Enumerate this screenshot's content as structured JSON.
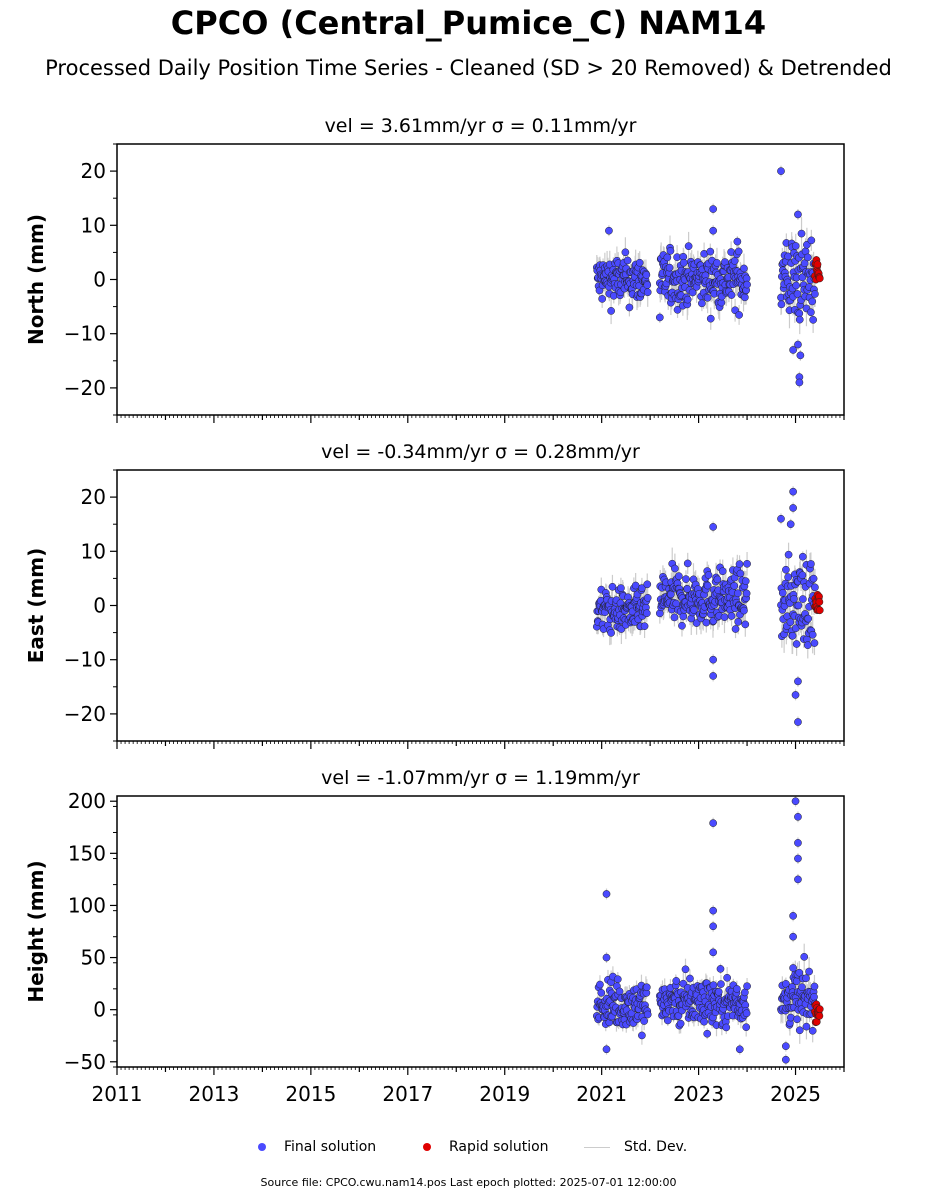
{
  "title": "CPCO (Central_Pumice_C) NAM14",
  "subtitle": "Processed Daily Position Time Series - Cleaned (SD > 20 Removed) & Detrended",
  "legend": {
    "final": "Final solution",
    "rapid": "Rapid solution",
    "std": "Std. Dev."
  },
  "source": "Source file: CPCO.cwu.nam14.pos  Last epoch plotted: 2025-07-01 12:00:00",
  "colors": {
    "final": "#4a4aff",
    "rapid": "#e00000",
    "errorbar": "#cccccc",
    "edge": "#222222"
  },
  "chart_data": [
    {
      "type": "scatter",
      "title": "vel = 3.61mm/yr   σ = 0.11mm/yr",
      "ylabel": "North (mm)",
      "xlim": [
        2011,
        2026
      ],
      "ylim": [
        -25,
        25
      ],
      "yticks": [
        -20,
        -10,
        0,
        10,
        20
      ],
      "xticks": [],
      "final_segments": [
        {
          "start": 2020.9,
          "end": 2021.95,
          "center": 0,
          "spread": 2.2,
          "sigma": 2.0
        },
        {
          "start": 2022.2,
          "end": 2024.0,
          "center": 0,
          "spread": 2.5,
          "sigma": 2.2
        },
        {
          "start": 2024.7,
          "end": 2025.4,
          "center": 0,
          "spread": 4.0,
          "sigma": 2.5
        }
      ],
      "final_outliers": [
        [
          2021.15,
          9
        ],
        [
          2022.2,
          -7
        ],
        [
          2023.3,
          13
        ],
        [
          2023.3,
          9
        ],
        [
          2023.8,
          7
        ],
        [
          2024.7,
          20
        ],
        [
          2025.05,
          12
        ],
        [
          2025.05,
          -12
        ],
        [
          2025.1,
          -14
        ],
        [
          2025.08,
          -18
        ],
        [
          2025.08,
          -19
        ],
        [
          2024.95,
          -13
        ]
      ],
      "rapid": {
        "start": 2025.4,
        "end": 2025.5,
        "center": 1.5,
        "spread": 1.2,
        "min": -2.2,
        "max": 3.6
      }
    },
    {
      "type": "scatter",
      "title": "vel = -0.34mm/yr   σ = 0.28mm/yr",
      "ylabel": "East (mm)",
      "xlim": [
        2011,
        2026
      ],
      "ylim": [
        -25,
        25
      ],
      "yticks": [
        -20,
        -10,
        0,
        10,
        20
      ],
      "xticks": [],
      "final_segments": [
        {
          "start": 2020.9,
          "end": 2021.95,
          "center": -1,
          "spread": 2.0,
          "sigma": 2.0
        },
        {
          "start": 2022.2,
          "end": 2024.0,
          "center": 1.5,
          "spread": 2.5,
          "sigma": 2.2
        },
        {
          "start": 2024.7,
          "end": 2025.4,
          "center": 0.5,
          "spread": 4.0,
          "sigma": 2.5
        }
      ],
      "final_outliers": [
        [
          2023.3,
          14.5
        ],
        [
          2023.3,
          -10
        ],
        [
          2023.3,
          -13
        ],
        [
          2024.7,
          16
        ],
        [
          2024.95,
          21
        ],
        [
          2024.95,
          18
        ],
        [
          2024.9,
          15
        ],
        [
          2025.15,
          9
        ],
        [
          2025.05,
          -14
        ],
        [
          2025.0,
          -16.5
        ],
        [
          2025.05,
          -21.5
        ]
      ],
      "rapid": {
        "start": 2025.4,
        "end": 2025.5,
        "center": 0,
        "spread": 1.0,
        "min": -2.0,
        "max": 2.0
      }
    },
    {
      "type": "scatter",
      "title": "vel = -1.07mm/yr   σ = 1.19mm/yr",
      "ylabel": "Height (mm)",
      "xlim": [
        2011,
        2026
      ],
      "ylim": [
        -55,
        205
      ],
      "yticks": [
        -50,
        0,
        50,
        100,
        150,
        200
      ],
      "xticks": [
        "2011",
        "2013",
        "2015",
        "2017",
        "2019",
        "2021",
        "2023",
        "2025"
      ],
      "final_segments": [
        {
          "start": 2020.9,
          "end": 2021.95,
          "center": 5,
          "spread": 12,
          "sigma": 8
        },
        {
          "start": 2022.2,
          "end": 2024.0,
          "center": 8,
          "spread": 12,
          "sigma": 8
        },
        {
          "start": 2024.7,
          "end": 2025.4,
          "center": 10,
          "spread": 14,
          "sigma": 10
        }
      ],
      "final_outliers": [
        [
          2021.1,
          111
        ],
        [
          2021.1,
          50
        ],
        [
          2021.1,
          -38
        ],
        [
          2023.3,
          179
        ],
        [
          2023.3,
          95
        ],
        [
          2023.3,
          80
        ],
        [
          2023.3,
          55
        ],
        [
          2023.85,
          -38
        ],
        [
          2025.0,
          200
        ],
        [
          2025.05,
          185
        ],
        [
          2025.05,
          160
        ],
        [
          2025.05,
          145
        ],
        [
          2025.05,
          125
        ],
        [
          2024.95,
          90
        ],
        [
          2024.95,
          70
        ],
        [
          2024.95,
          40
        ],
        [
          2024.8,
          -35
        ],
        [
          2024.8,
          -48
        ]
      ],
      "rapid": {
        "start": 2025.4,
        "end": 2025.5,
        "center": 0,
        "spread": 5,
        "min": -12,
        "max": 10
      }
    }
  ]
}
